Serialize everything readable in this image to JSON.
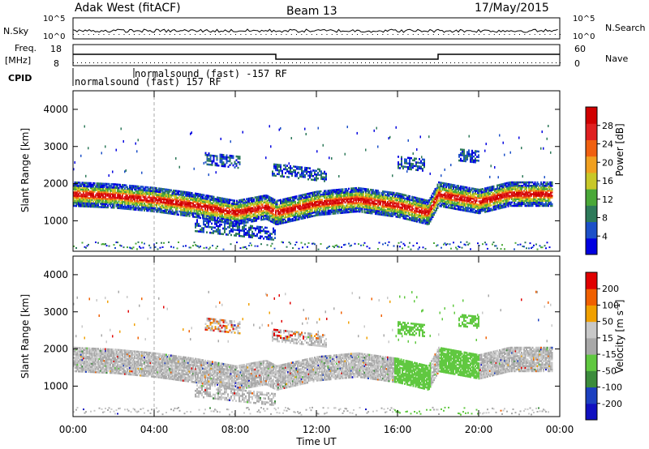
{
  "header": {
    "station": "Adak West (fitACF)",
    "beam": "Beam 13",
    "date": "17/May/2015"
  },
  "sky_panel": {
    "left_label": "N.Sky",
    "right_label": "N.Search",
    "ytick_top_left": "10^5",
    "ytick_bottom_left": "10^0",
    "ytick_top_right": "10^5",
    "ytick_bottom_right": "10^0"
  },
  "freq_panel": {
    "left_label_1": "Freq.",
    "left_label_2": "[MHz]",
    "right_label": "Nave",
    "left_ticks": [
      "18",
      "8"
    ],
    "right_ticks": [
      "60",
      "0"
    ]
  },
  "cpid_panel": {
    "label": "CPID",
    "segments": [
      {
        "label": "normalsound (fast) 157 RF",
        "start_hour": 0.0,
        "end_hour": 3.0
      },
      {
        "label": "normalsound (fast) -157 RF",
        "start_hour": 3.0,
        "end_hour": 24.0
      }
    ]
  },
  "colors": {
    "power": [
      "#0000e0",
      "#1c50c8",
      "#2e7a5a",
      "#4aa838",
      "#c8c828",
      "#f0a020",
      "#f06010",
      "#e02020",
      "#d00000"
    ],
    "velocity": [
      "#e00000",
      "#f06000",
      "#f0a000",
      "#c8c8c8",
      "#a8a8a8",
      "#60c840",
      "#3c8c3c",
      "#1c40c0",
      "#1010c0"
    ]
  },
  "chart_data": [
    {
      "type": "heatmap",
      "name": "power",
      "ylabel": "Slant Range [km]",
      "xlabel": "Time UT",
      "xlim_hours": [
        0,
        24
      ],
      "ylim": [
        180,
        4500
      ],
      "xticks": [
        "00:00",
        "04:00",
        "08:00",
        "12:00",
        "16:00",
        "20:00",
        "00:00"
      ],
      "yticks": [
        1000,
        2000,
        3000,
        4000
      ],
      "colorbar": {
        "label": "Power [dB]",
        "ticks": [
          "4",
          "8",
          "12",
          "16",
          "20",
          "24",
          "28"
        ]
      },
      "echo_band": {
        "hours": [
          0,
          2,
          4,
          6,
          8,
          9.5,
          10,
          12,
          14,
          16,
          17.5,
          18,
          20,
          21.5
        ],
        "center_km": [
          1750,
          1700,
          1600,
          1450,
          1250,
          1400,
          1250,
          1500,
          1600,
          1450,
          1250,
          1750,
          1550,
          1750
        ]
      }
    },
    {
      "type": "heatmap",
      "name": "velocity",
      "ylabel": "Slant Range [km]",
      "xlabel": "Time UT",
      "xlim_hours": [
        0,
        24
      ],
      "ylim": [
        180,
        4500
      ],
      "xticks": [
        "00:00",
        "04:00",
        "08:00",
        "12:00",
        "16:00",
        "20:00",
        "00:00"
      ],
      "yticks": [
        1000,
        2000,
        3000,
        4000
      ],
      "colorbar": {
        "label": "Velocity [m s-1]",
        "ticks": [
          "200",
          "100",
          "50",
          "15",
          "-15",
          "-50",
          "-100",
          "-200"
        ]
      }
    }
  ]
}
